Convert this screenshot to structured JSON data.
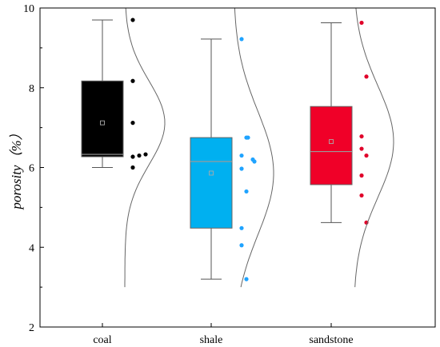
{
  "chart_data": {
    "type": "box",
    "ylabel": "porosity（%）",
    "ylim": [
      2,
      10
    ],
    "yticks": [
      2,
      4,
      6,
      8,
      10
    ],
    "grid": false,
    "categories": [
      "coal",
      "shale",
      "sandstone"
    ],
    "series": [
      {
        "category": "coal",
        "color": "#000000",
        "point_color": "#000000",
        "whisker_low": 6.0,
        "q1": 6.27,
        "median": 6.33,
        "q3": 8.17,
        "whisker_high": 9.7,
        "mean": 7.12,
        "points": [
          9.7,
          8.17,
          7.12,
          6.27,
          6.3,
          6.33,
          6.0
        ],
        "curve": {
          "mu": 7.12,
          "sigma": 1.05,
          "from": 3.0,
          "to": 10.0
        }
      },
      {
        "category": "shale",
        "color": "#00b0f0",
        "point_color": "#1fa3ff",
        "whisker_low": 3.2,
        "q1": 4.48,
        "median": 6.15,
        "q3": 6.75,
        "whisker_high": 9.22,
        "mean": 5.86,
        "points": [
          9.22,
          6.75,
          6.75,
          6.3,
          6.2,
          6.15,
          5.97,
          5.4,
          4.48,
          4.05,
          3.2
        ],
        "curve": {
          "mu": 5.86,
          "sigma": 1.55,
          "from": 3.0,
          "to": 10.0
        }
      },
      {
        "category": "sandstone",
        "color": "#f00028",
        "point_color": "#e0002a",
        "whisker_low": 4.62,
        "q1": 5.57,
        "median": 6.4,
        "q3": 7.53,
        "whisker_high": 9.63,
        "mean": 6.65,
        "points": [
          9.63,
          8.28,
          6.78,
          6.47,
          6.3,
          5.8,
          5.3,
          4.62
        ],
        "curve": {
          "mu": 6.65,
          "sigma": 1.4,
          "from": 3.0,
          "to": 10.0
        }
      }
    ]
  }
}
